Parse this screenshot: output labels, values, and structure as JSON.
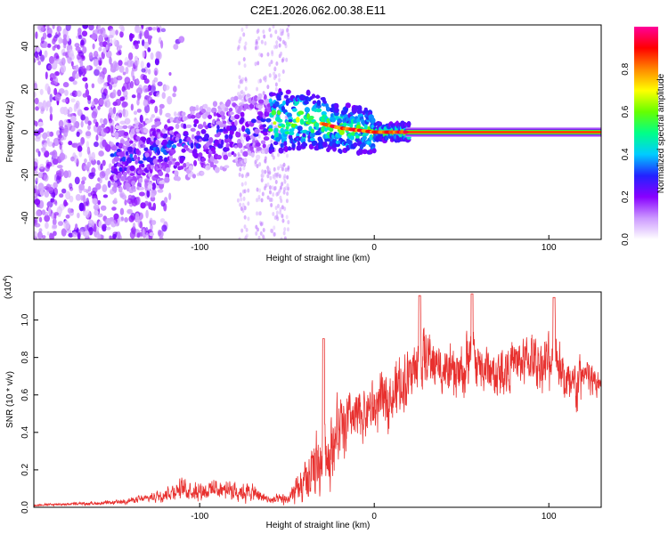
{
  "title": "C2E1.2026.062.00.38.E11",
  "chart_data": [
    {
      "type": "heatmap",
      "name": "spectrogram",
      "xlabel": "Height of straight line (km)",
      "ylabel": "Frequency (Hz)",
      "xlim": [
        -195,
        130
      ],
      "ylim": [
        -50,
        50
      ],
      "xticks": [
        -100,
        0,
        100
      ],
      "yticks": [
        -40,
        -20,
        0,
        20,
        40
      ],
      "colorbar": {
        "label": "Normalized spectral amplitude",
        "range": [
          0,
          1
        ],
        "ticks": [
          0.0,
          0.2,
          0.4,
          0.6,
          0.8
        ],
        "tick_labels": [
          "0.0",
          "0.2",
          "0.4",
          "0.6",
          "0.8"
        ],
        "colors": [
          "#ffffff",
          "#cc99ff",
          "#8800ff",
          "#2222ff",
          "#00ccff",
          "#00ff88",
          "#66ff00",
          "#ffff00",
          "#ff8800",
          "#ff0000",
          "#ff0099"
        ]
      },
      "ridge": {
        "description": "dominant frequency ridge vs height",
        "x": [
          -140,
          -120,
          -100,
          -80,
          -60,
          -40,
          -20,
          0,
          20,
          130
        ],
        "y": [
          -12,
          -8,
          -4,
          0,
          5,
          6,
          2,
          0,
          0,
          0
        ]
      },
      "noise_region_x": [
        -195,
        -130
      ],
      "column_artifacts_x": [
        -75,
        -65,
        -58,
        -52
      ]
    },
    {
      "type": "line",
      "name": "snr",
      "xlabel": "Height of straight line (km)",
      "ylabel": "SNR (10 * v/v)",
      "yscale_label": "(x10",
      "yscale_exponent": "4",
      "yscale_suffix": ")",
      "xlim": [
        -195,
        130
      ],
      "ylim": [
        0,
        1.15
      ],
      "xticks": [
        -100,
        0,
        100
      ],
      "yticks": [
        0.0,
        0.2,
        0.4,
        0.6,
        0.8,
        1.0
      ],
      "ytick_labels": [
        "0.0",
        "0.2",
        "0.4",
        "0.6",
        "0.8",
        "1.0"
      ],
      "color": "#e8302e",
      "envelope": {
        "x": [
          -195,
          -150,
          -130,
          -120,
          -110,
          -100,
          -90,
          -80,
          -70,
          -60,
          -50,
          -40,
          -35,
          -30,
          -25,
          -20,
          -10,
          0,
          10,
          20,
          25,
          30,
          40,
          50,
          55,
          60,
          70,
          80,
          90,
          100,
          105,
          110,
          115,
          120,
          125,
          130
        ],
        "base": [
          0.01,
          0.02,
          0.04,
          0.06,
          0.08,
          0.07,
          0.08,
          0.07,
          0.06,
          0.03,
          0.03,
          0.08,
          0.12,
          0.18,
          0.25,
          0.35,
          0.42,
          0.48,
          0.55,
          0.65,
          0.72,
          0.75,
          0.68,
          0.65,
          0.75,
          0.7,
          0.66,
          0.72,
          0.74,
          0.7,
          0.76,
          0.6,
          0.58,
          0.68,
          0.62,
          0.66
        ],
        "spread": [
          0.01,
          0.02,
          0.04,
          0.07,
          0.1,
          0.1,
          0.1,
          0.1,
          0.09,
          0.04,
          0.06,
          0.2,
          0.35,
          0.4,
          0.38,
          0.33,
          0.3,
          0.28,
          0.28,
          0.3,
          0.32,
          0.28,
          0.26,
          0.3,
          0.32,
          0.28,
          0.25,
          0.24,
          0.25,
          0.3,
          0.3,
          0.26,
          0.28,
          0.22,
          0.2,
          0.1
        ]
      },
      "peaks": [
        {
          "x": -29,
          "y": 0.9
        },
        {
          "x": 26,
          "y": 1.13
        },
        {
          "x": 56,
          "y": 1.14
        },
        {
          "x": 103,
          "y": 1.12
        }
      ]
    }
  ]
}
